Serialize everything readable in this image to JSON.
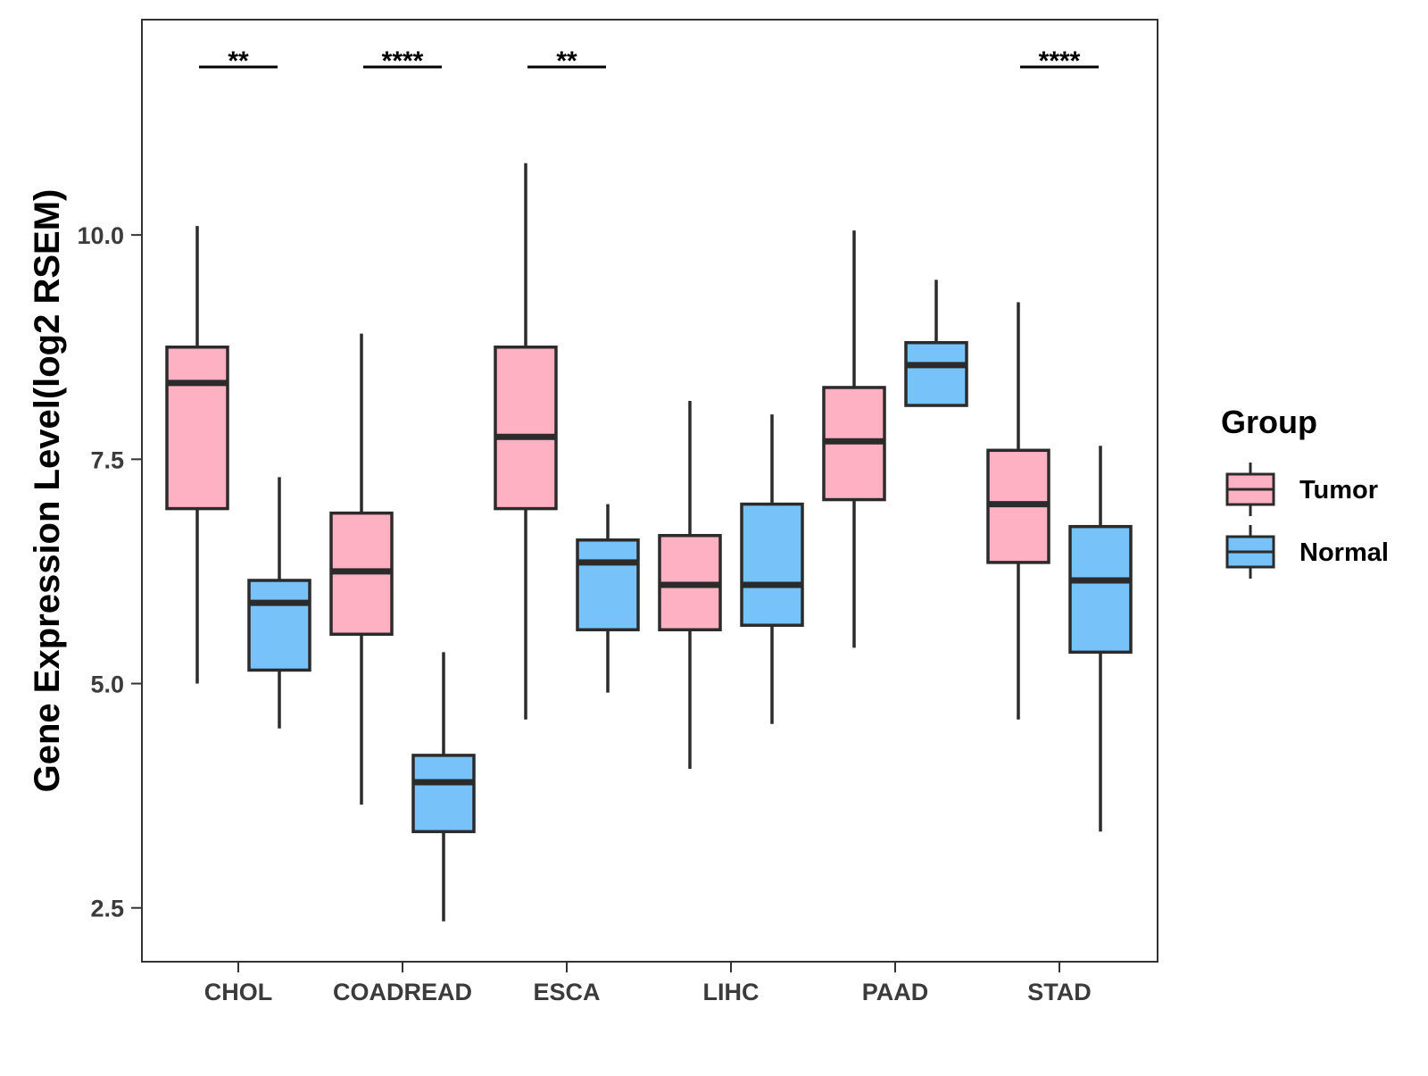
{
  "chart_data": {
    "type": "boxplot",
    "title": "",
    "xlabel": "",
    "ylabel": "Gene Expression Level(log2 RSEM)",
    "ylim": [
      1.9,
      12.4
    ],
    "yticks": [
      2.5,
      5.0,
      7.5,
      10.0
    ],
    "ytick_labels": [
      "2.5",
      "5.0",
      "7.5",
      "10.0"
    ],
    "categories": [
      "CHOL",
      "COADREAD",
      "ESCA",
      "LIHC",
      "PAAD",
      "STAD"
    ],
    "legend": {
      "title": "Group",
      "position": "right",
      "entries": [
        "Tumor",
        "Normal"
      ]
    },
    "colors": {
      "Tumor": "#FDB1C3",
      "Normal": "#77C2F9",
      "outline": "#2b2b2b"
    },
    "series": [
      {
        "name": "Tumor",
        "boxes": [
          {
            "category": "CHOL",
            "low": 5.0,
            "q1": 6.95,
            "median": 8.35,
            "q3": 8.75,
            "high": 10.1
          },
          {
            "category": "COADREAD",
            "low": 3.65,
            "q1": 5.55,
            "median": 6.25,
            "q3": 6.9,
            "high": 8.9
          },
          {
            "category": "ESCA",
            "low": 4.6,
            "q1": 6.95,
            "median": 7.75,
            "q3": 8.75,
            "high": 10.8
          },
          {
            "category": "LIHC",
            "low": 4.05,
            "q1": 5.6,
            "median": 6.1,
            "q3": 6.65,
            "high": 8.15
          },
          {
            "category": "PAAD",
            "low": 5.4,
            "q1": 7.05,
            "median": 7.7,
            "q3": 8.3,
            "high": 10.05
          },
          {
            "category": "STAD",
            "low": 4.6,
            "q1": 6.35,
            "median": 7.0,
            "q3": 7.6,
            "high": 9.25
          }
        ]
      },
      {
        "name": "Normal",
        "boxes": [
          {
            "category": "CHOL",
            "low": 4.5,
            "q1": 5.15,
            "median": 5.9,
            "q3": 6.15,
            "high": 7.3
          },
          {
            "category": "COADREAD",
            "low": 2.35,
            "q1": 3.35,
            "median": 3.9,
            "q3": 4.2,
            "high": 5.35
          },
          {
            "category": "ESCA",
            "low": 4.9,
            "q1": 5.6,
            "median": 6.35,
            "q3": 6.6,
            "high": 7.0
          },
          {
            "category": "LIHC",
            "low": 4.55,
            "q1": 5.65,
            "median": 6.1,
            "q3": 7.0,
            "high": 8.0
          },
          {
            "category": "PAAD",
            "low": 8.1,
            "q1": 8.1,
            "median": 8.55,
            "q3": 8.8,
            "high": 9.5
          },
          {
            "category": "STAD",
            "low": 3.35,
            "q1": 5.35,
            "median": 6.15,
            "q3": 6.75,
            "high": 7.65
          }
        ]
      }
    ],
    "annotations": [
      {
        "category": "CHOL",
        "label": "**"
      },
      {
        "category": "COADREAD",
        "label": "****"
      },
      {
        "category": "ESCA",
        "label": "**"
      },
      {
        "category": "STAD",
        "label": "****"
      }
    ]
  }
}
